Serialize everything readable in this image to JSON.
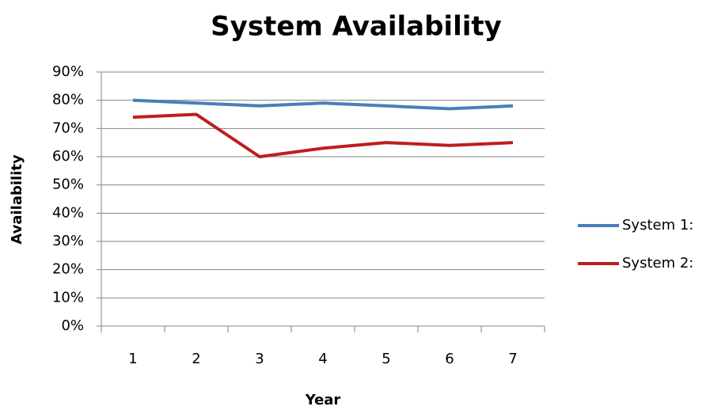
{
  "chart_data": {
    "type": "line",
    "title": "System Availability",
    "x_label": "Year",
    "y_label": "Availability",
    "categories": [
      "1",
      "2",
      "3",
      "4",
      "5",
      "6",
      "7"
    ],
    "series": [
      {
        "name": "System 1:",
        "color": "#4a7ebb",
        "values": [
          80,
          79,
          78,
          79,
          78,
          77,
          78
        ]
      },
      {
        "name": "System 2:",
        "color": "#be1e1e",
        "values": [
          74,
          75,
          60,
          63,
          65,
          64,
          65
        ]
      }
    ],
    "ylim": [
      0,
      90
    ],
    "yticks": [
      {
        "value": 0,
        "label": "0%"
      },
      {
        "value": 10,
        "label": "10%"
      },
      {
        "value": 20,
        "label": "20%"
      },
      {
        "value": 30,
        "label": "30%"
      },
      {
        "value": 40,
        "label": "40%"
      },
      {
        "value": 50,
        "label": "50%"
      },
      {
        "value": 60,
        "label": "60%"
      },
      {
        "value": 70,
        "label": "70%"
      },
      {
        "value": 80,
        "label": "80%"
      },
      {
        "value": 90,
        "label": "90%"
      }
    ],
    "grid": true,
    "legend": "right"
  }
}
